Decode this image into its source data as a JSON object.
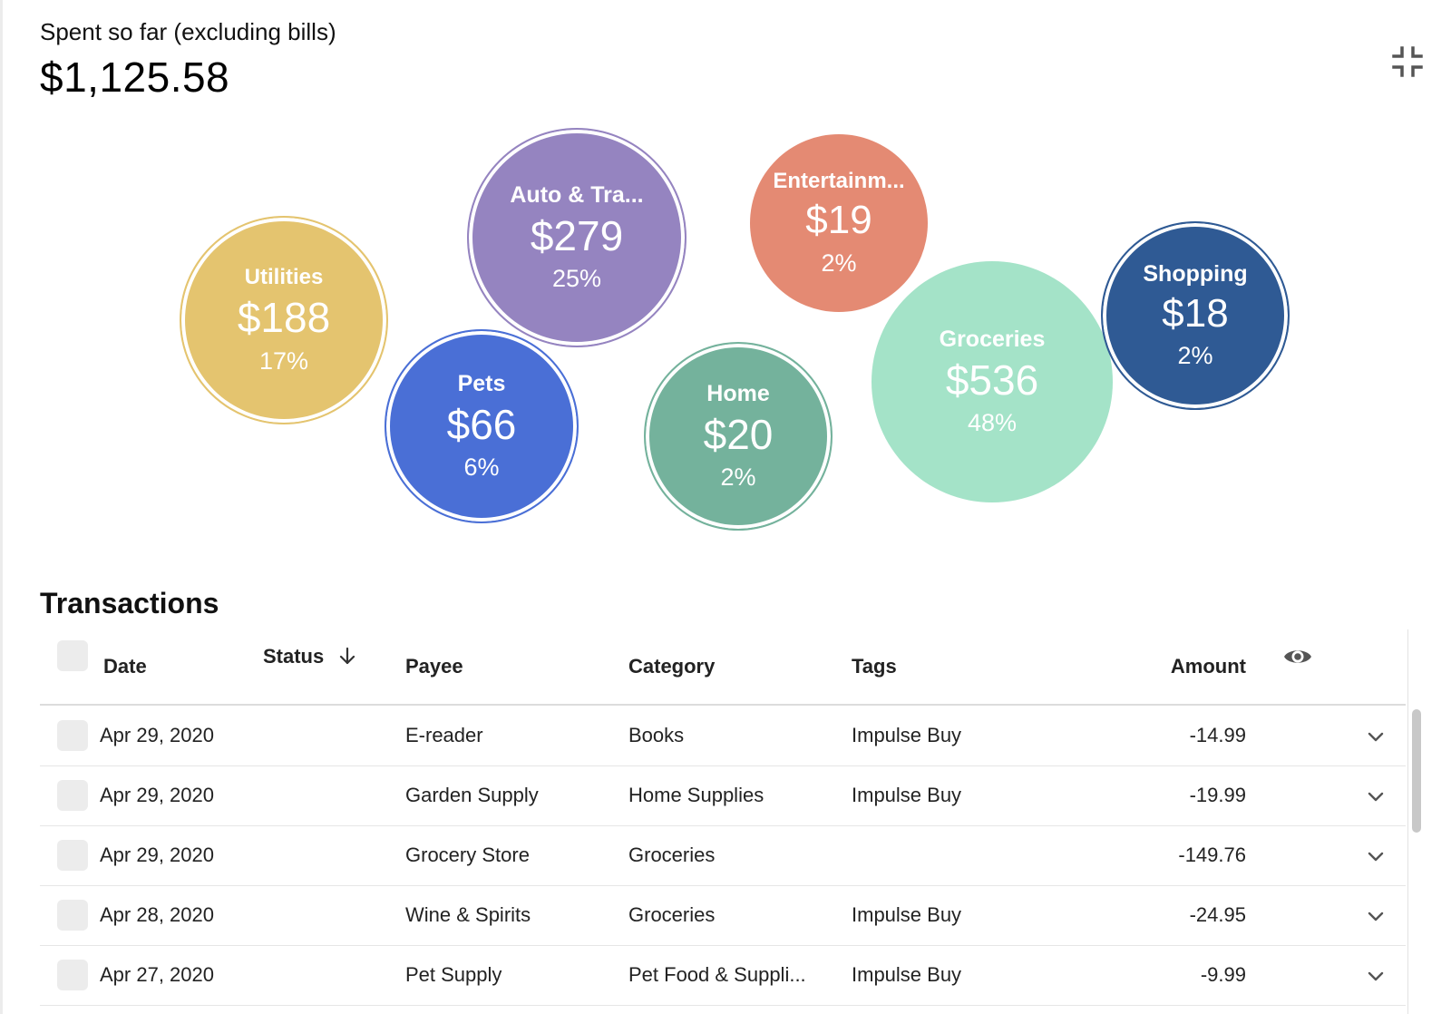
{
  "summary": {
    "label": "Spent so far (excluding bills)",
    "total": "$1,125.58"
  },
  "icons": {
    "collapse": "collapse-icon",
    "sort": "arrow-down-icon",
    "visibility": "eye-icon",
    "row_expand": "chevron-down-icon"
  },
  "bubbles": [
    {
      "name": "Utilities",
      "amount": "$188",
      "percent": "17%",
      "color": "#e4c46f"
    },
    {
      "name": "Auto & Tra...",
      "amount": "$279",
      "percent": "25%",
      "color": "#9584c0"
    },
    {
      "name": "Entertainm...",
      "amount": "$19",
      "percent": "2%",
      "color": "#e48a73"
    },
    {
      "name": "Pets",
      "amount": "$66",
      "percent": "6%",
      "color": "#4a6fd6"
    },
    {
      "name": "Home",
      "amount": "$20",
      "percent": "2%",
      "color": "#74b29c"
    },
    {
      "name": "Groceries",
      "amount": "$536",
      "percent": "48%",
      "color": "#a4e3c8"
    },
    {
      "name": "Shopping",
      "amount": "$18",
      "percent": "2%",
      "color": "#2f5a94"
    }
  ],
  "transactions": {
    "title": "Transactions",
    "columns": {
      "date": "Date",
      "status": "Status",
      "payee": "Payee",
      "category": "Category",
      "tags": "Tags",
      "amount": "Amount"
    },
    "rows": [
      {
        "date": "Apr 29, 2020",
        "payee": "E-reader",
        "category": "Books",
        "tags": "Impulse Buy",
        "amount": "-14.99"
      },
      {
        "date": "Apr 29, 2020",
        "payee": "Garden Supply",
        "category": "Home Supplies",
        "tags": "Impulse Buy",
        "amount": "-19.99"
      },
      {
        "date": "Apr 29, 2020",
        "payee": "Grocery Store",
        "category": "Groceries",
        "tags": "",
        "amount": "-149.76"
      },
      {
        "date": "Apr 28, 2020",
        "payee": "Wine & Spirits",
        "category": "Groceries",
        "tags": "Impulse Buy",
        "amount": "-24.95"
      },
      {
        "date": "Apr 27, 2020",
        "payee": "Pet Supply",
        "category": "Pet Food & Suppli...",
        "tags": "Impulse Buy",
        "amount": "-9.99"
      }
    ]
  }
}
